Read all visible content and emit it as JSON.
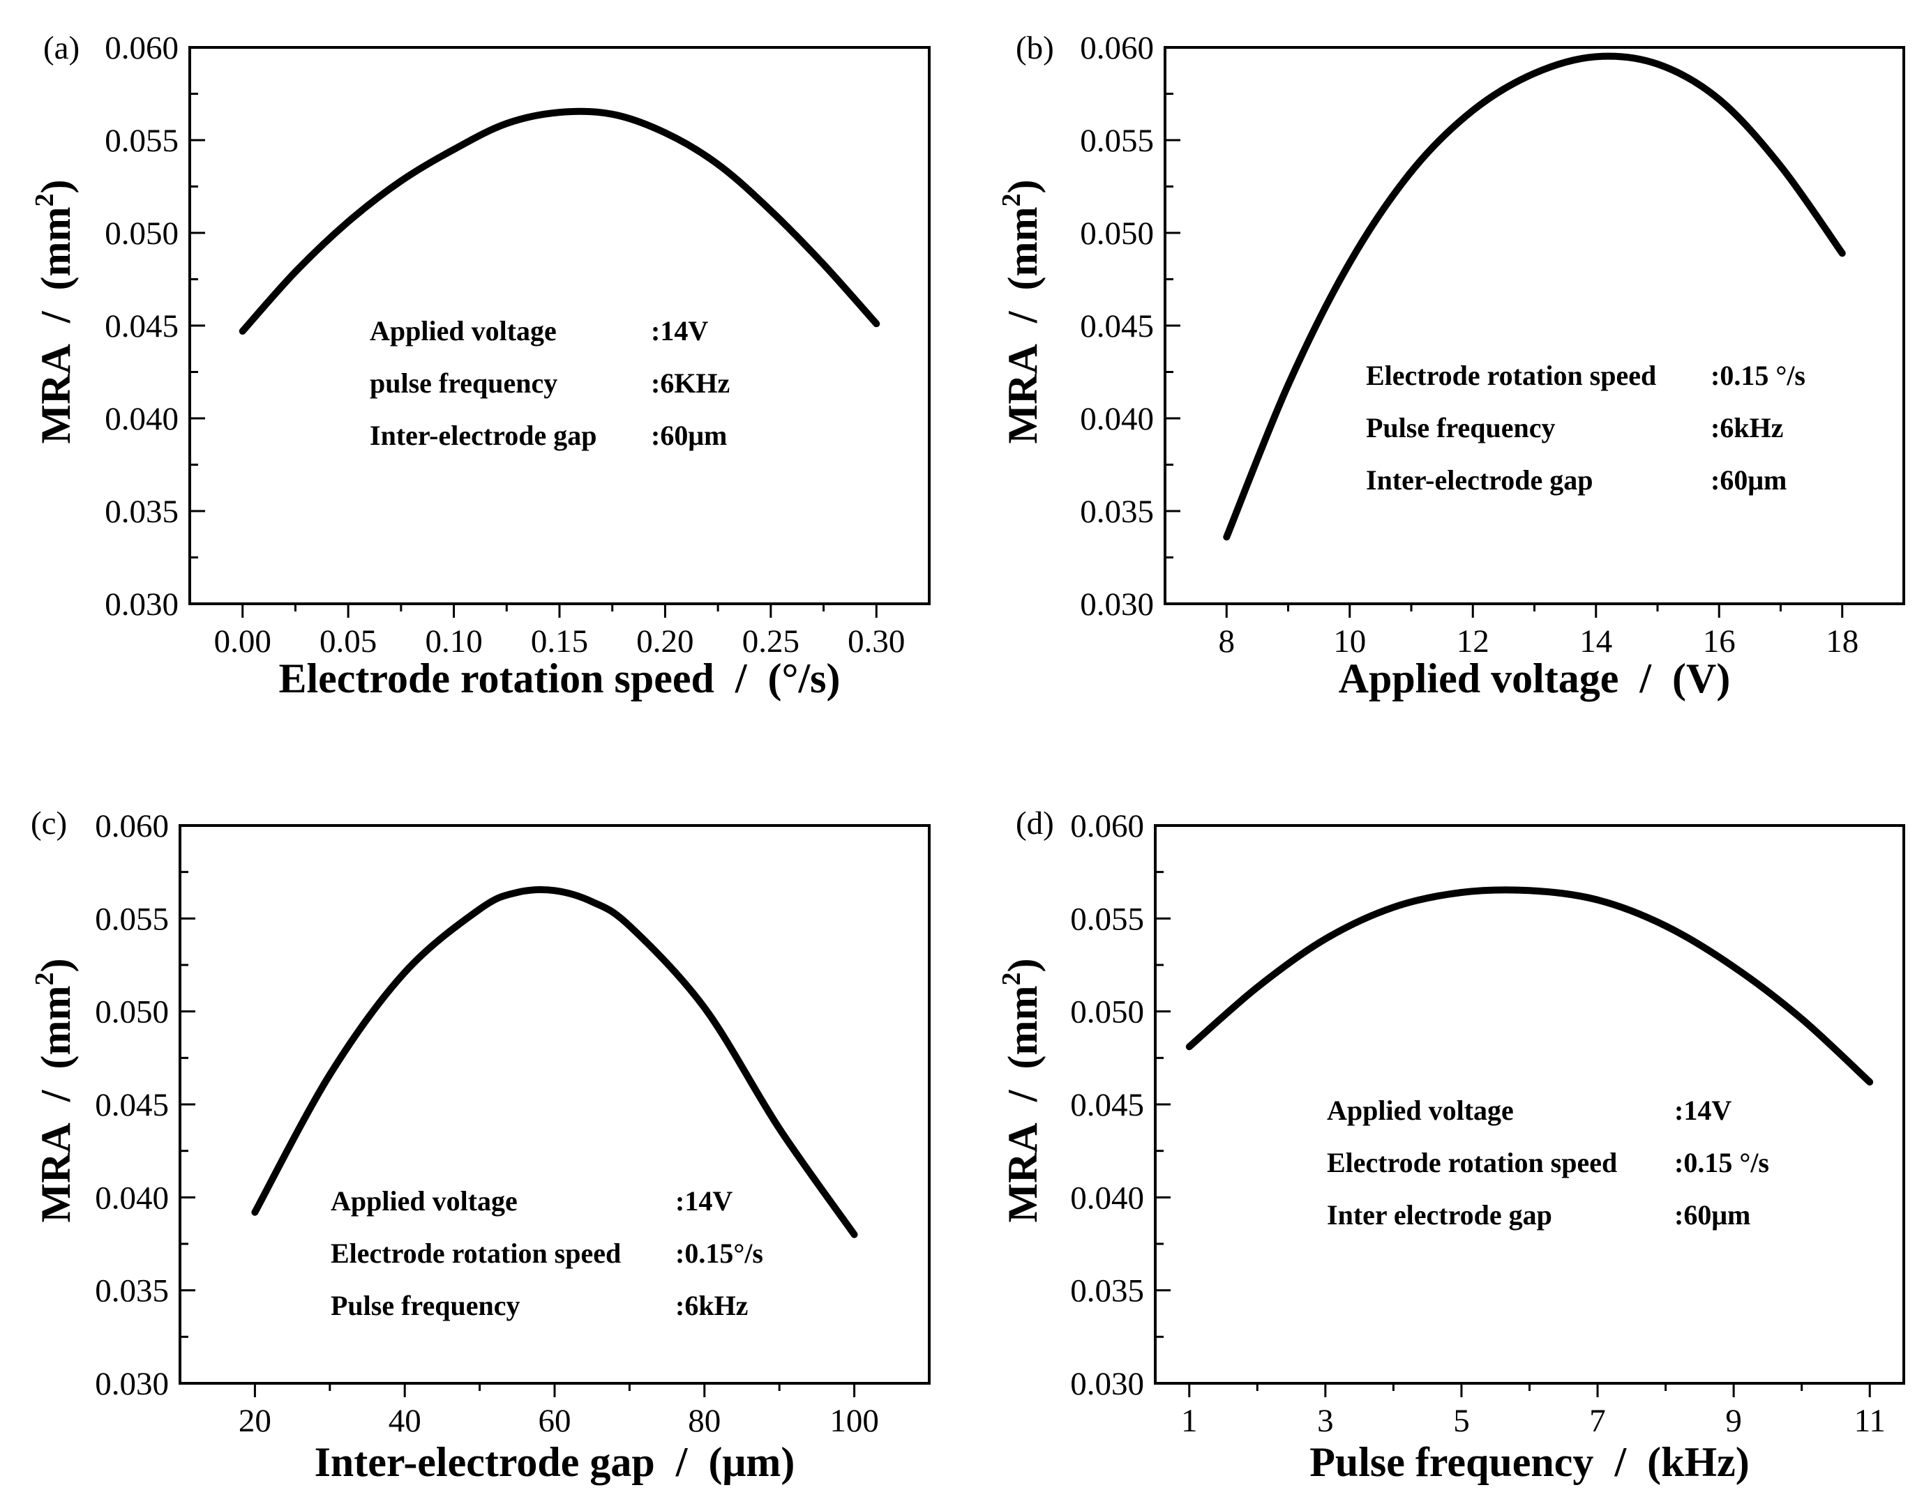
{
  "chart_data": [
    {
      "panel": "(a)",
      "type": "line",
      "xlabel_main": "Electrode rotation speed",
      "xlabel_unit": "(°/s)",
      "ylabel_main": "MRA",
      "ylabel_unit_base": "(mm",
      "ylabel_unit_sup": "2",
      "ylabel_unit_end": ")",
      "separator": "/",
      "xlim": [
        -0.025,
        0.325
      ],
      "ylim": [
        0.03,
        0.06
      ],
      "xticks": [
        0,
        0.05,
        0.1,
        0.15,
        0.2,
        0.25,
        0.3
      ],
      "xtick_labels": [
        "0.00",
        "0.05",
        "0.10",
        "0.15",
        "0.20",
        "0.25",
        "0.30"
      ],
      "yticks": [
        0.03,
        0.035,
        0.04,
        0.045,
        0.05,
        0.055,
        0.06
      ],
      "ytick_labels": [
        "0.030",
        "0.035",
        "0.040",
        "0.045",
        "0.050",
        "0.055",
        "0.060"
      ],
      "x": [
        0,
        0.025,
        0.05,
        0.075,
        0.1,
        0.125,
        0.15,
        0.175,
        0.2,
        0.225,
        0.25,
        0.275,
        0.3
      ],
      "y": [
        0.0447,
        0.0479,
        0.0506,
        0.0528,
        0.0545,
        0.0559,
        0.0565,
        0.0564,
        0.0554,
        0.0537,
        0.0512,
        0.0483,
        0.0451
      ],
      "annotations": [
        {
          "label": "Applied voltage",
          "value": ":14V"
        },
        {
          "label": "pulse frequency",
          "value": ":6KHz"
        },
        {
          "label": "Inter-electrode gap",
          "value": ":60μm"
        }
      ]
    },
    {
      "panel": "(b)",
      "type": "line",
      "xlabel_main": "Applied voltage",
      "xlabel_unit": "(V)",
      "ylabel_main": "MRA",
      "ylabel_unit_base": "(mm",
      "ylabel_unit_sup": "2",
      "ylabel_unit_end": ")",
      "separator": "/",
      "xlim": [
        7,
        19
      ],
      "ylim": [
        0.03,
        0.06
      ],
      "xticks": [
        8,
        10,
        12,
        14,
        16,
        18
      ],
      "xtick_labels": [
        "8",
        "10",
        "12",
        "14",
        "16",
        "18"
      ],
      "yticks": [
        0.03,
        0.035,
        0.04,
        0.045,
        0.05,
        0.055,
        0.06
      ],
      "ytick_labels": [
        "0.030",
        "0.035",
        "0.040",
        "0.045",
        "0.050",
        "0.055",
        "0.060"
      ],
      "x": [
        8,
        9,
        10,
        11,
        12,
        13,
        14,
        15,
        16,
        17,
        18
      ],
      "y": [
        0.0336,
        0.0418,
        0.0484,
        0.0533,
        0.0566,
        0.0586,
        0.0595,
        0.0591,
        0.0572,
        0.0536,
        0.0489
      ],
      "annotations": [
        {
          "label": "Electrode rotation speed",
          "value": ":0.15 °/s"
        },
        {
          "label": "Pulse frequency",
          "value": ":6kHz"
        },
        {
          "label": "Inter-electrode gap",
          "value": ":60μm"
        }
      ]
    },
    {
      "panel": "(c)",
      "type": "line",
      "xlabel_main": "Inter-electrode gap",
      "xlabel_unit": "(μm)",
      "ylabel_main": "MRA",
      "ylabel_unit_base": "(mm",
      "ylabel_unit_sup": "2",
      "ylabel_unit_end": ")",
      "separator": "/",
      "xlim": [
        10,
        110
      ],
      "ylim": [
        0.03,
        0.06
      ],
      "xticks": [
        20,
        40,
        60,
        80,
        100
      ],
      "xtick_labels": [
        "20",
        "40",
        "60",
        "80",
        "100"
      ],
      "yticks": [
        0.03,
        0.035,
        0.04,
        0.045,
        0.05,
        0.055,
        0.06
      ],
      "ytick_labels": [
        "0.030",
        "0.035",
        "0.040",
        "0.045",
        "0.050",
        "0.055",
        "0.060"
      ],
      "x": [
        20,
        30,
        40,
        50,
        55,
        60,
        65,
        70,
        80,
        90,
        100
      ],
      "y": [
        0.0392,
        0.0466,
        0.0521,
        0.0555,
        0.0564,
        0.0565,
        0.0559,
        0.0546,
        0.0502,
        0.0437,
        0.038
      ],
      "annotations": [
        {
          "label": "Applied voltage",
          "value": ":14V"
        },
        {
          "label": "Electrode rotation speed",
          "value": ":0.15°/s"
        },
        {
          "label": "Pulse frequency",
          "value": ":6kHz"
        }
      ]
    },
    {
      "panel": "(d)",
      "type": "line",
      "xlabel_main": "Pulse frequency",
      "xlabel_unit": "(kHz)",
      "ylabel_main": "MRA",
      "ylabel_unit_base": "(mm",
      "ylabel_unit_sup": "2",
      "ylabel_unit_end": ")",
      "separator": "/",
      "xlim": [
        0.5,
        11.5
      ],
      "ylim": [
        0.03,
        0.06
      ],
      "xticks": [
        1,
        3,
        5,
        7,
        9,
        11
      ],
      "xtick_labels": [
        "1",
        "3",
        "5",
        "7",
        "9",
        "11"
      ],
      "yticks": [
        0.03,
        0.035,
        0.04,
        0.045,
        0.05,
        0.055,
        0.06
      ],
      "ytick_labels": [
        "0.030",
        "0.035",
        "0.040",
        "0.045",
        "0.050",
        "0.055",
        "0.060"
      ],
      "x": [
        1,
        2,
        3,
        4,
        5,
        6,
        7,
        8,
        9,
        10,
        11
      ],
      "y": [
        0.0481,
        0.0513,
        0.0539,
        0.0556,
        0.0564,
        0.0565,
        0.056,
        0.0546,
        0.0524,
        0.0496,
        0.0462
      ],
      "annotations": [
        {
          "label": "Applied voltage",
          "value": ":14V"
        },
        {
          "label": "Electrode rotation speed",
          "value": ":0.15 °/s"
        },
        {
          "label": "Inter electrode gap",
          "value": ":60μm"
        }
      ]
    }
  ]
}
